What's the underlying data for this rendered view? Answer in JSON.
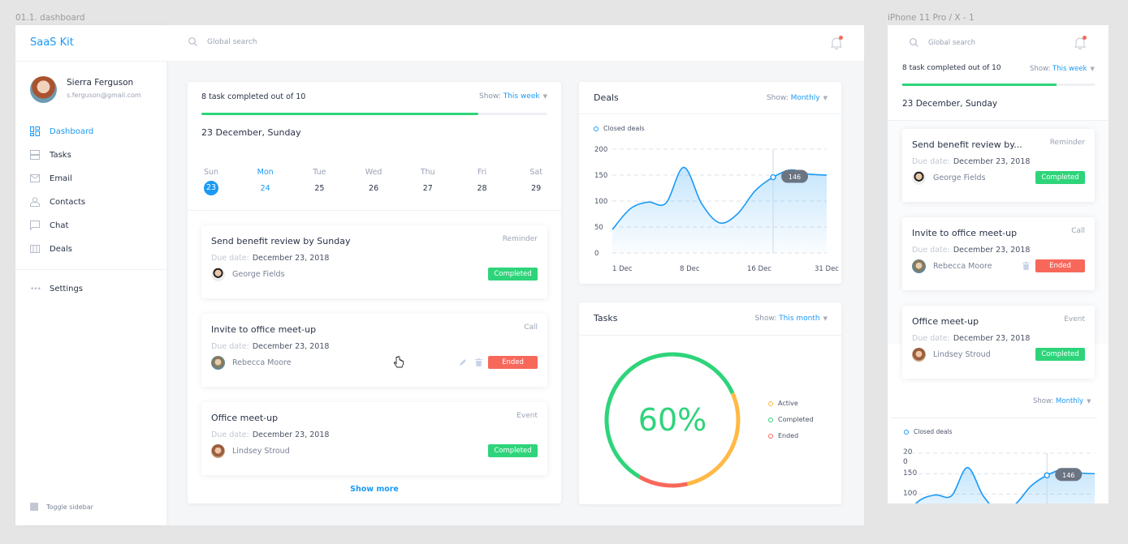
{
  "canvas": {
    "desktop_frame_label": "01.1. dashboard",
    "mobile_frame_label": "iPhone 11 Pro / X - 1"
  },
  "colors": {
    "accent": "#1b9af5",
    "completed": "#2ed47a",
    "ended": "#f7685b",
    "active": "#ffb946"
  },
  "sidebar": {
    "brand": "SaaS Kit",
    "user": {
      "name": "Sierra Ferguson",
      "email": "s.ferguson@gmail.com"
    },
    "items": [
      {
        "label": "Dashboard",
        "icon": "dashboard-icon",
        "active": true
      },
      {
        "label": "Tasks",
        "icon": "tasks-icon"
      },
      {
        "label": "Email",
        "icon": "email-icon"
      },
      {
        "label": "Contacts",
        "icon": "contacts-icon"
      },
      {
        "label": "Chat",
        "icon": "chat-icon"
      },
      {
        "label": "Deals",
        "icon": "deals-icon"
      }
    ],
    "settings": "Settings",
    "toggle": "Toggle sidebar"
  },
  "header": {
    "search_placeholder": "Global search",
    "notifications_unread": true
  },
  "tasks_panel": {
    "progress_text": "8 task completed out of 10",
    "progress": 0.8,
    "show_label": "Show:",
    "show_value": "This week",
    "date": "23 December, Sunday",
    "week": [
      {
        "dow": "Sun",
        "day": "23",
        "selected": true
      },
      {
        "dow": "Mon",
        "day": "24",
        "today": true
      },
      {
        "dow": "Tue",
        "day": "25"
      },
      {
        "dow": "Wed",
        "day": "26"
      },
      {
        "dow": "Thu",
        "day": "27"
      },
      {
        "dow": "Fri",
        "day": "28"
      },
      {
        "dow": "Sat",
        "day": "29"
      }
    ],
    "due_label": "Due date:",
    "tasks": [
      {
        "title": "Send benefit review by Sunday",
        "mobile_title": "Send benefit review by...",
        "type": "Reminder",
        "due": "December 23, 2018",
        "person": "George Fields",
        "status": "Completed"
      },
      {
        "title": "Invite to office meet-up",
        "mobile_title": "Invite to office meet-up",
        "type": "Call",
        "due": "December 23, 2018",
        "person": "Rebecca Moore",
        "status": "Ended"
      },
      {
        "title": "Office meet-up",
        "mobile_title": "Office meet-up",
        "type": "Event",
        "due": "December 23, 2018",
        "person": "Lindsey Stroud",
        "status": "Completed"
      }
    ],
    "show_more": "Show more"
  },
  "deals": {
    "title": "Deals",
    "show_label": "Show:",
    "show_value": "Monthly",
    "chart_data": {
      "type": "area",
      "legend": "Closed deals",
      "legend_position": "top-left",
      "x_ticks": [
        "1 Dec",
        "8 Dec",
        "16 Dec",
        "31 Dec"
      ],
      "y_ticks": [
        0,
        50,
        100,
        150,
        200
      ],
      "ylim": [
        0,
        200
      ],
      "grid": "dashed horizontal",
      "values": [
        45,
        85,
        98,
        96,
        165,
        95,
        58,
        75,
        120,
        146,
        160,
        152,
        150
      ],
      "highlight_index": 9,
      "tooltip": "146"
    }
  },
  "tasks_chart": {
    "title": "Tasks",
    "show_label": "Show:",
    "show_value": "This month",
    "center_label": "60%",
    "chart_data": {
      "type": "pie",
      "donut": true,
      "legend_position": "right",
      "slices": [
        {
          "name": "Active",
          "value": 28,
          "color": "#ffb946"
        },
        {
          "name": "Completed",
          "value": 60,
          "color": "#2ed47a"
        },
        {
          "name": "Ended",
          "value": 12,
          "color": "#f7685b"
        }
      ]
    }
  },
  "mobile": {
    "y_ticks": [
      "200",
      "150",
      "100"
    ]
  }
}
